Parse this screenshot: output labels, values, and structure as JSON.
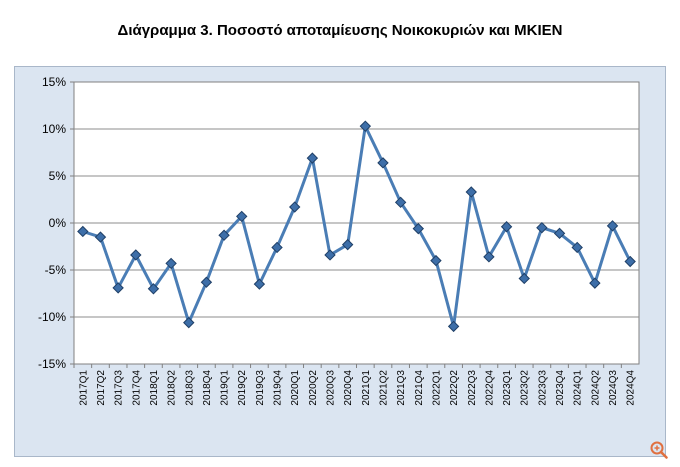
{
  "title": "Διάγραμμα 3. Ποσοστό αποταμίευσης Νοικοκυριών και ΜΚΙΕΝ",
  "colors": {
    "frame_bg": "#dbe5f1",
    "plot_bg": "#ffffff",
    "line": "#4a7db5",
    "marker_fill": "#3d6ea8",
    "marker_stroke": "#1f3f66",
    "grid": "#8c8c8c"
  },
  "icons": {
    "corner": "zoom-icon"
  },
  "chart_data": {
    "type": "line",
    "title": "Διάγραμμα 3. Ποσοστό αποταμίευσης Νοικοκυριών και ΜΚΙΕΝ",
    "xlabel": "",
    "ylabel": "",
    "ylim": [
      -15,
      15
    ],
    "yticks": [
      15,
      10,
      5,
      0,
      -5,
      -10,
      -15
    ],
    "ytick_labels": [
      "15%",
      "10%",
      "5%",
      "0%",
      "-5%",
      "-10%",
      "-15%"
    ],
    "grid": true,
    "legend": "none",
    "categories": [
      "2017Q1",
      "2017Q2",
      "2017Q3",
      "2017Q4",
      "2018Q1",
      "2018Q2",
      "2018Q3",
      "2018Q4",
      "2019Q1",
      "2019Q2",
      "2019Q3",
      "2019Q4",
      "2020Q1",
      "2020Q2",
      "2020Q3",
      "2020Q4",
      "2021Q1",
      "2021Q2",
      "2021Q3",
      "2021Q4",
      "2022Q1",
      "2022Q2",
      "2022Q3",
      "2022Q4",
      "2023Q1",
      "2023Q2",
      "2023Q3",
      "2023Q4",
      "2024Q1",
      "2024Q2",
      "2024Q3",
      "2024Q4"
    ],
    "series": [
      {
        "values": [
          -0.9,
          -1.5,
          -6.9,
          -3.4,
          -7.0,
          -4.3,
          -10.6,
          -6.3,
          -1.3,
          0.7,
          -6.5,
          -2.6,
          1.7,
          6.9,
          -3.4,
          -2.3,
          10.3,
          6.4,
          2.2,
          -0.6,
          -4.0,
          -11.0,
          3.3,
          -3.6,
          -0.4,
          -5.9,
          -0.5,
          -1.1,
          -2.6,
          -6.4,
          -0.3,
          -4.1
        ]
      }
    ]
  }
}
